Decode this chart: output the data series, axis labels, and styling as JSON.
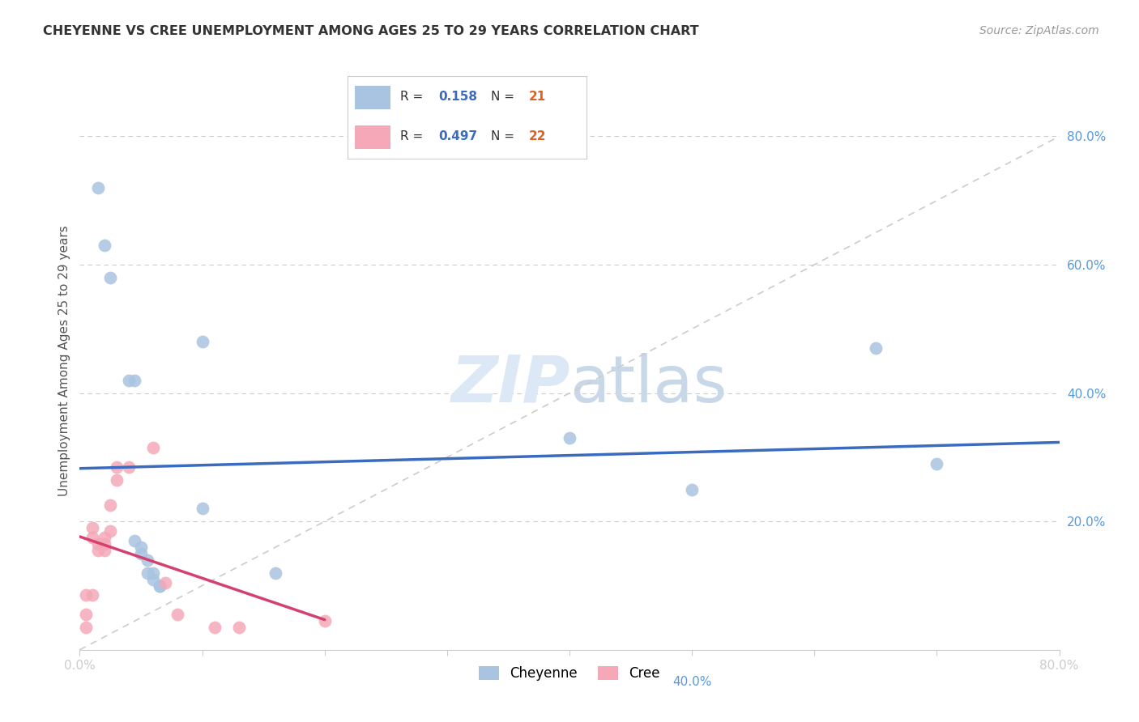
{
  "title": "CHEYENNE VS CREE UNEMPLOYMENT AMONG AGES 25 TO 29 YEARS CORRELATION CHART",
  "source": "Source: ZipAtlas.com",
  "ylabel": "Unemployment Among Ages 25 to 29 years",
  "xlim": [
    0.0,
    0.8
  ],
  "ylim": [
    0.0,
    0.9
  ],
  "yticks_right": [
    0.2,
    0.4,
    0.6,
    0.8
  ],
  "ytick_right_labels": [
    "20.0%",
    "40.0%",
    "60.0%",
    "80.0%"
  ],
  "cheyenne_color": "#a8c4e0",
  "cree_color": "#f4a8b8",
  "cheyenne_line_color": "#3a6bbf",
  "cree_line_color": "#d44070",
  "diagonal_color": "#cccccc",
  "legend_R_cheyenne": "0.158",
  "legend_N_cheyenne": "21",
  "legend_R_cree": "0.497",
  "legend_N_cree": "22",
  "legend_R_color": "#3a6bbf",
  "legend_N_color": "#e06020",
  "cheyenne_x": [
    0.015,
    0.02,
    0.025,
    0.04,
    0.045,
    0.045,
    0.05,
    0.05,
    0.055,
    0.055,
    0.06,
    0.06,
    0.065,
    0.065,
    0.1,
    0.1,
    0.16,
    0.4,
    0.5,
    0.65,
    0.7
  ],
  "cheyenne_y": [
    0.72,
    0.63,
    0.58,
    0.42,
    0.42,
    0.17,
    0.16,
    0.15,
    0.14,
    0.12,
    0.12,
    0.11,
    0.1,
    0.1,
    0.48,
    0.22,
    0.12,
    0.33,
    0.25,
    0.47,
    0.29
  ],
  "cree_x": [
    0.005,
    0.005,
    0.005,
    0.01,
    0.01,
    0.01,
    0.015,
    0.015,
    0.02,
    0.02,
    0.02,
    0.025,
    0.025,
    0.03,
    0.03,
    0.04,
    0.06,
    0.07,
    0.08,
    0.11,
    0.13,
    0.2
  ],
  "cree_y": [
    0.035,
    0.055,
    0.085,
    0.175,
    0.19,
    0.085,
    0.155,
    0.165,
    0.155,
    0.165,
    0.175,
    0.185,
    0.225,
    0.265,
    0.285,
    0.285,
    0.315,
    0.105,
    0.055,
    0.035,
    0.035,
    0.045
  ],
  "background_color": "#ffffff",
  "watermark_color": "#dce8f5",
  "grid_color": "#cccccc"
}
